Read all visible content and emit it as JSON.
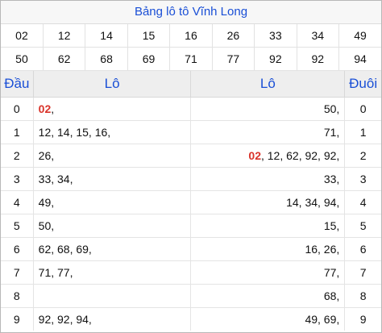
{
  "title": "Bảng lô tô Vĩnh Long",
  "numbers_row1": [
    "02",
    "12",
    "14",
    "15",
    "16",
    "26",
    "33",
    "34",
    "49"
  ],
  "numbers_row2": [
    "50",
    "62",
    "68",
    "69",
    "71",
    "77",
    "92",
    "92",
    "94"
  ],
  "headers": {
    "dau": "Đầu",
    "lo_left": "Lô",
    "lo_right": "Lô",
    "duoi": "Đuôi"
  },
  "rows": [
    {
      "dau": "0",
      "left_hl": "02",
      "left": ",",
      "right_hl": "",
      "right": "50,",
      "duoi": "0"
    },
    {
      "dau": "1",
      "left_hl": "",
      "left": "12, 14, 15, 16,",
      "right_hl": "",
      "right": "71,",
      "duoi": "1"
    },
    {
      "dau": "2",
      "left_hl": "",
      "left": "26,",
      "right_hl": "02",
      "right": ", 12, 62, 92, 92,",
      "duoi": "2"
    },
    {
      "dau": "3",
      "left_hl": "",
      "left": "33, 34,",
      "right_hl": "",
      "right": "33,",
      "duoi": "3"
    },
    {
      "dau": "4",
      "left_hl": "",
      "left": "49,",
      "right_hl": "",
      "right": "14, 34, 94,",
      "duoi": "4"
    },
    {
      "dau": "5",
      "left_hl": "",
      "left": "50,",
      "right_hl": "",
      "right": "15,",
      "duoi": "5"
    },
    {
      "dau": "6",
      "left_hl": "",
      "left": "62, 68, 69,",
      "right_hl": "",
      "right": "16, 26,",
      "duoi": "6"
    },
    {
      "dau": "7",
      "left_hl": "",
      "left": "71, 77,",
      "right_hl": "",
      "right": "77,",
      "duoi": "7"
    },
    {
      "dau": "8",
      "left_hl": "",
      "left": "",
      "right_hl": "",
      "right": "68,",
      "duoi": "8"
    },
    {
      "dau": "9",
      "left_hl": "",
      "left": "92, 92, 94,",
      "right_hl": "",
      "right": "49, 69,",
      "duoi": "9"
    }
  ],
  "colors": {
    "accent_blue": "#1a4fd6",
    "highlight_red": "#d9332a"
  }
}
